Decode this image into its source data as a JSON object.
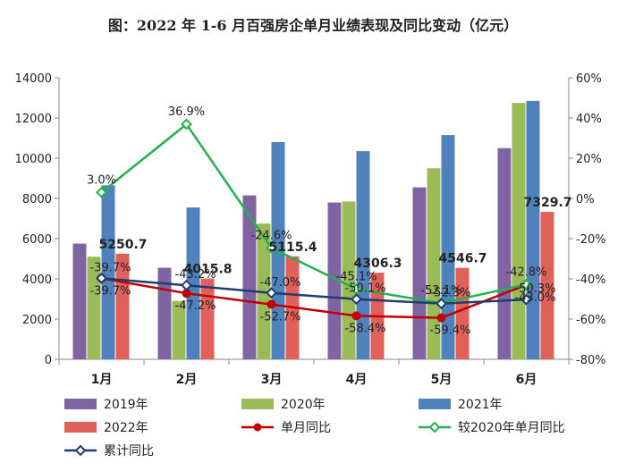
{
  "chart_data": {
    "type": "bar",
    "title": "图：2022 年 1-6 月百强房企单月业绩表现及同比变动（亿元）",
    "categories": [
      "1月",
      "2月",
      "3月",
      "4月",
      "5月",
      "6月"
    ],
    "series": [
      {
        "name": "2019年",
        "kind": "bar",
        "color": "#8064A2",
        "values": [
          5750,
          4550,
          8150,
          7800,
          8550,
          10500
        ]
      },
      {
        "name": "2020年",
        "kind": "bar",
        "color": "#9BBB59",
        "values": [
          5100,
          2900,
          6750,
          7850,
          9500,
          12750
        ]
      },
      {
        "name": "2021年",
        "kind": "bar",
        "color": "#4F81BD",
        "values": [
          8650,
          7550,
          10800,
          10350,
          11150,
          12850
        ]
      },
      {
        "name": "2022年",
        "kind": "bar",
        "color": "#E0605A",
        "values": [
          5250.7,
          4015.8,
          5115.4,
          4306.3,
          4546.7,
          7329.7
        ]
      },
      {
        "name": "单月同比",
        "kind": "line",
        "axis": "right",
        "color": "#C00000",
        "values": [
          -39.7,
          -47.2,
          -52.7,
          -58.4,
          -59.4,
          -43.0
        ]
      },
      {
        "name": "较2020年单月同比",
        "kind": "line",
        "axis": "right",
        "color": "#22B14C",
        "values": [
          3.0,
          36.9,
          -24.6,
          -45.1,
          -52.1,
          -42.8
        ]
      },
      {
        "name": "累计同比",
        "kind": "line",
        "axis": "right",
        "color": "#1F3D6E",
        "values": [
          -39.7,
          -43.2,
          -47.0,
          -50.1,
          -52.3,
          -50.3
        ]
      }
    ],
    "ylim_left": [
      0,
      14000
    ],
    "yticks_left": [
      "0",
      "2000",
      "4000",
      "6000",
      "8000",
      "10000",
      "12000",
      "14000"
    ],
    "ylim_right": [
      -80,
      60
    ],
    "yticks_right": [
      "-80%",
      "-60%",
      "-40%",
      "-20%",
      "0%",
      "20%",
      "40%",
      "60%"
    ],
    "bar_labels": [
      "5250.7",
      "4015.8",
      "5115.4",
      "4306.3",
      "4546.7",
      "7329.7"
    ],
    "single_month_labels": [
      "-39.7%",
      "-47.2%",
      "-52.7%",
      "-58.4%",
      "-59.4%",
      "-43.0%"
    ],
    "vs2020_labels": [
      "3.0%",
      "36.9%",
      "-24.6%",
      "-45.1%",
      "-52.1%",
      "-42.8%"
    ],
    "cumulative_labels": [
      "-39.7%",
      "-43.2%",
      "-47.0%",
      "-50.1%",
      "-52.3%",
      "-50.3%"
    ],
    "legend_position": "bottom",
    "grid": false
  }
}
